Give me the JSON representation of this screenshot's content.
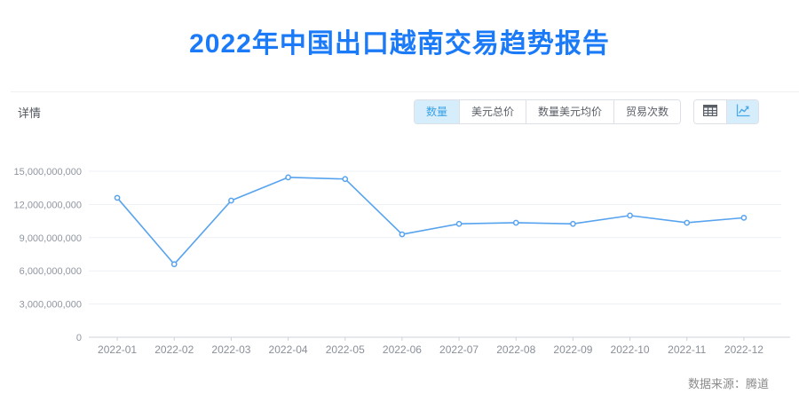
{
  "page": {
    "title": "2022年中国出口越南交易趋势报告",
    "section_label": "详情",
    "source_label": "数据来源：腾道"
  },
  "toolbar": {
    "tabs": [
      {
        "label": "数量",
        "active": true
      },
      {
        "label": "美元总价",
        "active": false
      },
      {
        "label": "数量美元均价",
        "active": false
      },
      {
        "label": "贸易次数",
        "active": false
      }
    ],
    "view_toggles": [
      {
        "icon": "table-icon",
        "active": false
      },
      {
        "icon": "line-chart-icon",
        "active": true
      }
    ]
  },
  "colors": {
    "title_blue": "#1a7af8",
    "line_blue": "#57a3ef",
    "active_tab_bg": "#d6edfb",
    "active_tab_text": "#39a2e5",
    "grid_line": "#eef1f7",
    "axis_line": "#ccd0d9",
    "axis_text": "#8f95a0"
  },
  "chart_data": {
    "type": "line",
    "title": "2022年中国出口越南交易趋势报告",
    "x": [
      "2022-01",
      "2022-02",
      "2022-03",
      "2022-04",
      "2022-05",
      "2022-06",
      "2022-07",
      "2022-08",
      "2022-09",
      "2022-10",
      "2022-11",
      "2022-12"
    ],
    "series": [
      {
        "name": "数量",
        "values": [
          12600000000,
          6600000000,
          12350000000,
          14450000000,
          14300000000,
          9300000000,
          10250000000,
          10350000000,
          10250000000,
          11000000000,
          10350000000,
          10800000000
        ]
      }
    ],
    "ylim": [
      0,
      15000000000
    ],
    "yticks": [
      0,
      3000000000,
      6000000000,
      9000000000,
      12000000000,
      15000000000
    ],
    "xlabel": "",
    "ylabel": "",
    "grid": true,
    "legend_position": "none",
    "marker": "hollow-circle"
  }
}
